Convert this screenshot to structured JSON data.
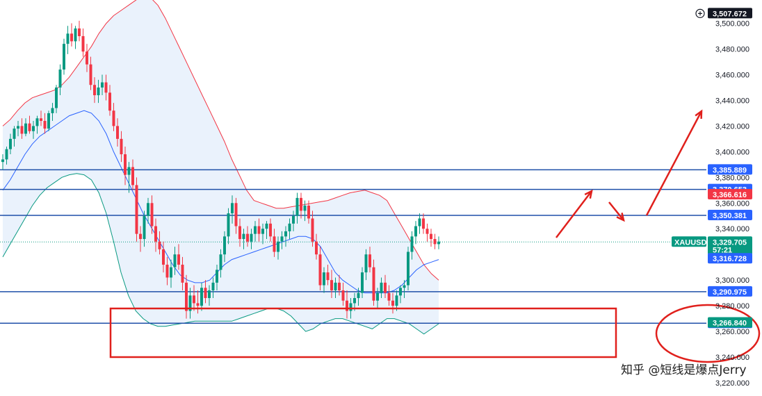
{
  "chart_data": {
    "type": "candlestick",
    "symbol": "XAUUSD",
    "ylim": [
      3210,
      3522
    ],
    "y_ticks": [
      "3,220.000",
      "3,240.000",
      "3,260.000",
      "3,280.000",
      "3,300.000",
      "3,320.000",
      "3,340.000",
      "3,360.000",
      "3,380.000",
      "3,400.000",
      "3,420.000",
      "3,440.000",
      "3,460.000",
      "3,480.000",
      "3,500.000"
    ],
    "y_tick_values": [
      3220,
      3240,
      3260,
      3280,
      3300,
      3320,
      3340,
      3360,
      3380,
      3400,
      3420,
      3440,
      3460,
      3480,
      3500
    ],
    "grid": false,
    "candles": [
      [
        3392,
        3398,
        3386,
        3394
      ],
      [
        3394,
        3404,
        3390,
        3402
      ],
      [
        3402,
        3414,
        3398,
        3410
      ],
      [
        3410,
        3420,
        3404,
        3418
      ],
      [
        3418,
        3424,
        3412,
        3420
      ],
      [
        3420,
        3426,
        3410,
        3414
      ],
      [
        3414,
        3426,
        3412,
        3422
      ],
      [
        3422,
        3428,
        3414,
        3416
      ],
      [
        3416,
        3424,
        3410,
        3420
      ],
      [
        3420,
        3428,
        3414,
        3426
      ],
      [
        3426,
        3432,
        3420,
        3424
      ],
      [
        3424,
        3430,
        3414,
        3418
      ],
      [
        3418,
        3432,
        3416,
        3430
      ],
      [
        3430,
        3438,
        3424,
        3434
      ],
      [
        3434,
        3452,
        3430,
        3450
      ],
      [
        3450,
        3468,
        3444,
        3464
      ],
      [
        3464,
        3488,
        3460,
        3484
      ],
      [
        3484,
        3498,
        3476,
        3492
      ],
      [
        3492,
        3500,
        3482,
        3486
      ],
      [
        3486,
        3498,
        3480,
        3496
      ],
      [
        3496,
        3502,
        3486,
        3490
      ],
      [
        3490,
        3496,
        3474,
        3478
      ],
      [
        3478,
        3484,
        3462,
        3468
      ],
      [
        3468,
        3474,
        3448,
        3452
      ],
      [
        3452,
        3458,
        3438,
        3444
      ],
      [
        3444,
        3456,
        3438,
        3450
      ],
      [
        3450,
        3460,
        3444,
        3454
      ],
      [
        3454,
        3460,
        3440,
        3446
      ],
      [
        3446,
        3452,
        3428,
        3432
      ],
      [
        3432,
        3438,
        3416,
        3420
      ],
      [
        3420,
        3426,
        3404,
        3410
      ],
      [
        3410,
        3416,
        3392,
        3398
      ],
      [
        3398,
        3404,
        3374,
        3382
      ],
      [
        3382,
        3392,
        3368,
        3388
      ],
      [
        3388,
        3394,
        3370,
        3374
      ],
      [
        3374,
        3380,
        3330,
        3336
      ],
      [
        3336,
        3342,
        3322,
        3332
      ],
      [
        3332,
        3354,
        3326,
        3350
      ],
      [
        3350,
        3364,
        3344,
        3360
      ],
      [
        3360,
        3366,
        3336,
        3342
      ],
      [
        3342,
        3348,
        3322,
        3330
      ],
      [
        3330,
        3338,
        3320,
        3324
      ],
      [
        3324,
        3330,
        3306,
        3312
      ],
      [
        3312,
        3318,
        3296,
        3302
      ],
      [
        3302,
        3316,
        3294,
        3310
      ],
      [
        3310,
        3326,
        3304,
        3320
      ],
      [
        3320,
        3328,
        3308,
        3312
      ],
      [
        3312,
        3318,
        3292,
        3298
      ],
      [
        3298,
        3304,
        3270,
        3276
      ],
      [
        3276,
        3294,
        3270,
        3288
      ],
      [
        3288,
        3296,
        3276,
        3282
      ],
      [
        3282,
        3292,
        3274,
        3280
      ],
      [
        3280,
        3298,
        3276,
        3294
      ],
      [
        3294,
        3300,
        3282,
        3286
      ],
      [
        3286,
        3296,
        3280,
        3292
      ],
      [
        3292,
        3302,
        3286,
        3298
      ],
      [
        3298,
        3312,
        3292,
        3308
      ],
      [
        3308,
        3324,
        3302,
        3320
      ],
      [
        3320,
        3338,
        3314,
        3334
      ],
      [
        3334,
        3356,
        3328,
        3352
      ],
      [
        3352,
        3366,
        3344,
        3360
      ],
      [
        3360,
        3364,
        3336,
        3342
      ],
      [
        3342,
        3348,
        3326,
        3332
      ],
      [
        3332,
        3340,
        3324,
        3336
      ],
      [
        3336,
        3342,
        3326,
        3330
      ],
      [
        3330,
        3340,
        3324,
        3336
      ],
      [
        3336,
        3346,
        3330,
        3342
      ],
      [
        3342,
        3348,
        3330,
        3336
      ],
      [
        3336,
        3344,
        3328,
        3340
      ],
      [
        3340,
        3346,
        3332,
        3344
      ],
      [
        3344,
        3348,
        3330,
        3334
      ],
      [
        3334,
        3340,
        3318,
        3322
      ],
      [
        3322,
        3334,
        3316,
        3330
      ],
      [
        3330,
        3338,
        3324,
        3334
      ],
      [
        3334,
        3342,
        3326,
        3338
      ],
      [
        3338,
        3348,
        3332,
        3344
      ],
      [
        3344,
        3354,
        3338,
        3350
      ],
      [
        3350,
        3368,
        3344,
        3364
      ],
      [
        3364,
        3368,
        3348,
        3354
      ],
      [
        3354,
        3362,
        3346,
        3358
      ],
      [
        3358,
        3362,
        3344,
        3348
      ],
      [
        3348,
        3354,
        3326,
        3330
      ],
      [
        3330,
        3336,
        3316,
        3320
      ],
      [
        3320,
        3326,
        3292,
        3296
      ],
      [
        3296,
        3310,
        3290,
        3306
      ],
      [
        3306,
        3312,
        3296,
        3300
      ],
      [
        3300,
        3308,
        3286,
        3292
      ],
      [
        3292,
        3302,
        3286,
        3298
      ],
      [
        3298,
        3304,
        3288,
        3292
      ],
      [
        3292,
        3298,
        3280,
        3284
      ],
      [
        3284,
        3292,
        3270,
        3276
      ],
      [
        3276,
        3286,
        3270,
        3282
      ],
      [
        3282,
        3290,
        3276,
        3286
      ],
      [
        3286,
        3294,
        3280,
        3290
      ],
      [
        3290,
        3310,
        3286,
        3306
      ],
      [
        3306,
        3324,
        3300,
        3320
      ],
      [
        3320,
        3326,
        3306,
        3310
      ],
      [
        3310,
        3316,
        3280,
        3284
      ],
      [
        3284,
        3294,
        3278,
        3290
      ],
      [
        3290,
        3302,
        3286,
        3298
      ],
      [
        3298,
        3304,
        3286,
        3290
      ],
      [
        3290,
        3296,
        3280,
        3284
      ],
      [
        3284,
        3290,
        3274,
        3280
      ],
      [
        3280,
        3292,
        3276,
        3288
      ],
      [
        3288,
        3296,
        3282,
        3294
      ],
      [
        3294,
        3300,
        3286,
        3296
      ],
      [
        3296,
        3326,
        3292,
        3322
      ],
      [
        3322,
        3338,
        3316,
        3334
      ],
      [
        3334,
        3346,
        3328,
        3342
      ],
      [
        3342,
        3352,
        3336,
        3348
      ],
      [
        3348,
        3352,
        3336,
        3340
      ],
      [
        3340,
        3344,
        3330,
        3336
      ],
      [
        3336,
        3340,
        3326,
        3332
      ],
      [
        3332,
        3336,
        3324,
        3328
      ],
      [
        3328,
        3334,
        3324,
        3330
      ]
    ],
    "bollinger_upper": [
      3420,
      3425,
      3432,
      3438,
      3442,
      3444,
      3446,
      3448,
      3452,
      3458,
      3466,
      3474,
      3482,
      3492,
      3500,
      3506,
      3510,
      3514,
      3518,
      3522,
      3520,
      3514,
      3504,
      3492,
      3480,
      3468,
      3456,
      3444,
      3432,
      3420,
      3408,
      3394,
      3382,
      3370,
      3362,
      3360,
      3358,
      3356,
      3356,
      3357,
      3358,
      3359,
      3360,
      3361,
      3362,
      3364,
      3366,
      3368,
      3369,
      3370,
      3368,
      3366,
      3362,
      3352,
      3342,
      3332,
      3322,
      3312,
      3305,
      3300
    ],
    "bollinger_lower": [
      3318,
      3328,
      3338,
      3348,
      3358,
      3366,
      3372,
      3376,
      3380,
      3382,
      3383,
      3382,
      3378,
      3368,
      3352,
      3330,
      3306,
      3288,
      3276,
      3270,
      3266,
      3264,
      3264,
      3265,
      3266,
      3267,
      3268,
      3268,
      3268,
      3268,
      3268,
      3268,
      3270,
      3272,
      3274,
      3276,
      3278,
      3278,
      3276,
      3272,
      3266,
      3260,
      3262,
      3266,
      3268,
      3270,
      3270,
      3268,
      3266,
      3264,
      3262,
      3266,
      3270,
      3270,
      3268,
      3266,
      3262,
      3258,
      3262,
      3266
    ],
    "bollinger_mid": [
      3370,
      3378,
      3388,
      3398,
      3406,
      3412,
      3416,
      3420,
      3424,
      3428,
      3430,
      3432,
      3430,
      3424,
      3414,
      3400,
      3388,
      3376,
      3364,
      3352,
      3342,
      3332,
      3322,
      3312,
      3304,
      3300,
      3298,
      3298,
      3300,
      3306,
      3312,
      3316,
      3318,
      3320,
      3322,
      3324,
      3326,
      3328,
      3330,
      3332,
      3334,
      3334,
      3332,
      3326,
      3316,
      3306,
      3300,
      3296,
      3292,
      3290,
      3290,
      3290,
      3290,
      3292,
      3296,
      3302,
      3308,
      3312,
      3314,
      3316
    ],
    "levels": [
      {
        "value": 3385.889,
        "label": "3,385.889"
      },
      {
        "value": 3370.653,
        "label": "3,370.653"
      },
      {
        "value": 3350.381,
        "label": "3,350.381"
      },
      {
        "value": 3290.975,
        "label": "3,290.975"
      },
      {
        "value": 3266.392,
        "label": "3,266.392"
      }
    ],
    "price_tags": [
      {
        "value": 3507.672,
        "label": "3,507.672",
        "color": "#131722",
        "icon": "plus-circle-icon"
      },
      {
        "value": 3366.616,
        "label": "3,366.616",
        "color": "#f23645"
      },
      {
        "value": 3329.705,
        "label": "3,329.705",
        "sublabel": "57:21",
        "color": "#089981",
        "symbol_tag": "XAUUSD"
      },
      {
        "value": 3316.728,
        "label": "3,316.728",
        "color": "#2962ff"
      },
      {
        "value": 3266.84,
        "label": "3,266.840",
        "color": "#089981"
      }
    ],
    "current_price": 3329.705,
    "colors": {
      "up": "#089981",
      "down": "#f23645",
      "level": "#1e4fa8",
      "upper_band": "#f23645",
      "lower_band": "#089981",
      "mid_band": "#2962ff",
      "band_fill": "#e3eefb",
      "annotation": "#e0201c"
    }
  },
  "watermark": {
    "text": "知乎 @短线是爆点Jerry"
  }
}
